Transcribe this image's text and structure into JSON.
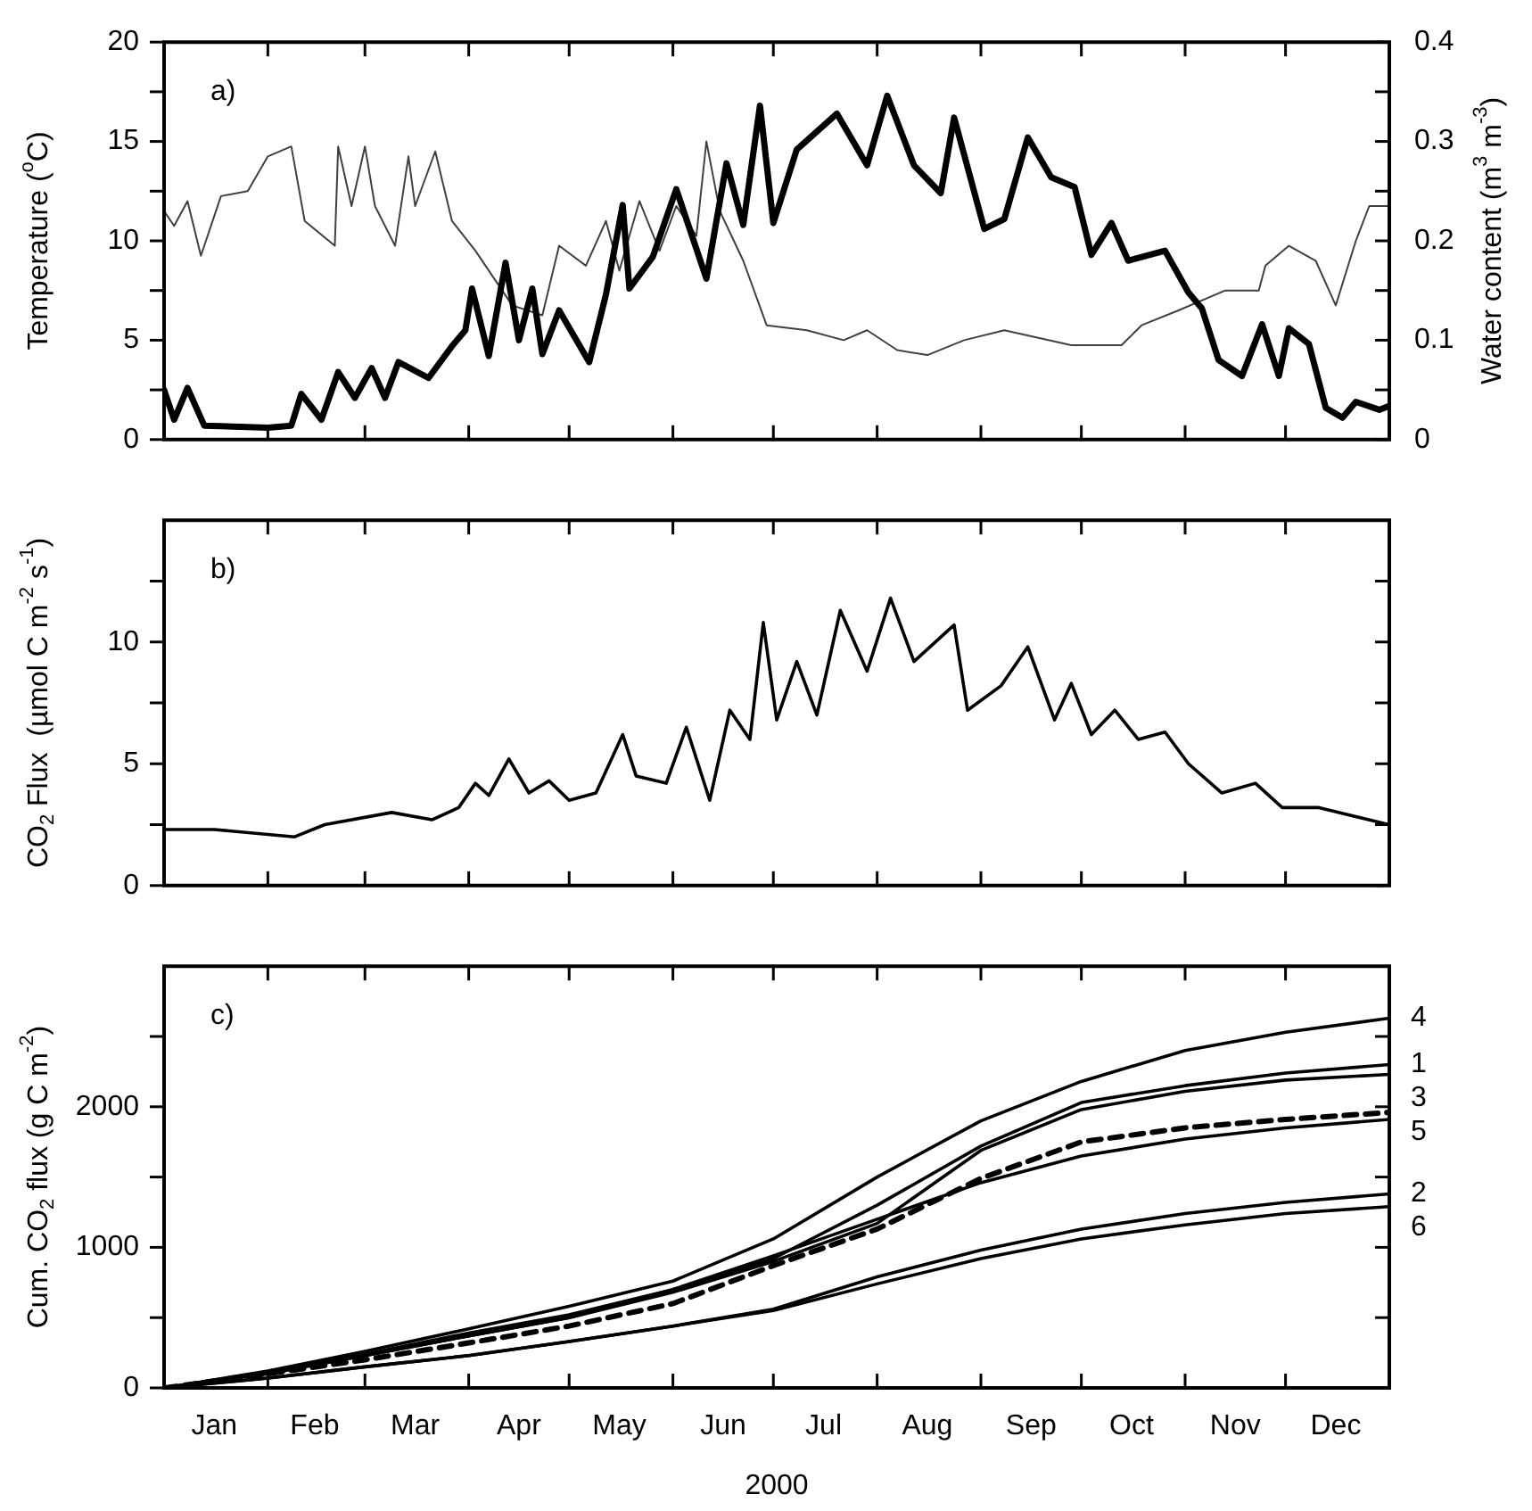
{
  "chart_data": [
    {
      "type": "line",
      "ylabel": "Temperature ($^{o}$C)",
      "y2label": "Water content (m$^{3}$ m$^{-3}$)",
      "annotations": [
        "a)"
      ],
      "xlim": [
        "2000-01-01",
        "2001-01-01"
      ],
      "xticks": [
        {
          "value": "2000-02-01",
          "label": null
        },
        {
          "value": "2000-03-01",
          "label": null
        },
        {
          "value": "2000-04-01",
          "label": null
        },
        {
          "value": "2000-05-01",
          "label": null
        },
        {
          "value": "2000-06-01",
          "label": null
        },
        {
          "value": "2000-07-01",
          "label": null
        },
        {
          "value": "2000-08-01",
          "label": null
        },
        {
          "value": "2000-09-01",
          "label": null
        },
        {
          "value": "2000-10-01",
          "label": null
        },
        {
          "value": "2000-11-01",
          "label": null
        },
        {
          "value": "2000-12-01",
          "label": null
        }
      ],
      "ylim": [
        0,
        20
      ],
      "yticks": [
        0,
        {
          "value": 2.5,
          "label": null
        },
        5,
        {
          "value": 7.5,
          "label": null
        },
        10,
        {
          "value": 12.5,
          "label": null
        },
        15,
        {
          "value": 17.5,
          "label": null
        },
        20
      ],
      "y2lim": [
        0,
        0.4
      ],
      "y2ticks": [
        0,
        {
          "value": 0.05,
          "label": null
        },
        0.1,
        {
          "value": 0.15,
          "label": null
        },
        0.2,
        {
          "value": 0.25,
          "label": null
        },
        0.3,
        {
          "value": 0.35,
          "label": null
        },
        0.4
      ],
      "tick_labels": "y",
      "grid": false,
      "legend": false,
      "marker": "none",
      "series": [
        {
          "color": "#000000",
          "x": [
            "2000-01-01",
            "2000-01-04",
            "2000-01-08",
            "2000-01-13",
            "2000-02-01",
            "2000-02-08",
            "2000-02-11",
            "2000-02-17",
            "2000-02-22",
            "2000-02-27",
            "2000-03-03",
            "2000-03-07",
            "2000-03-11",
            "2000-03-20",
            "2000-03-27",
            "2000-03-31",
            "2000-04-02",
            "2000-04-07",
            "2000-04-12",
            "2000-04-16",
            "2000-04-20",
            "2000-04-23",
            "2000-04-28",
            "2000-05-07",
            "2000-05-12",
            "2000-05-17",
            "2000-05-19",
            "2000-05-26",
            "2000-06-02",
            "2000-06-11",
            "2000-06-17",
            "2000-06-22",
            "2000-06-27",
            "2000-07-01",
            "2000-07-08",
            "2000-07-20",
            "2000-07-29",
            "2000-08-04",
            "2000-08-12",
            "2000-08-20",
            "2000-08-24",
            "2000-09-02",
            "2000-09-08",
            "2000-09-15",
            "2000-09-22",
            "2000-09-29",
            "2000-10-04",
            "2000-10-10",
            "2000-10-15",
            "2000-10-26",
            "2000-11-02",
            "2000-11-06",
            "2000-11-11",
            "2000-11-18",
            "2000-11-24",
            "2000-11-29",
            "2000-12-02",
            "2000-12-08",
            "2000-12-13",
            "2000-12-18",
            "2000-12-22",
            "2000-12-29",
            "2001-01-01"
          ],
          "values": [
            2.5,
            1.0,
            2.6,
            0.7,
            0.6,
            0.7,
            2.3,
            1.0,
            3.4,
            2.1,
            3.6,
            2.1,
            3.9,
            3.1,
            4.7,
            5.5,
            7.6,
            4.2,
            8.9,
            5.0,
            7.6,
            4.3,
            6.5,
            3.9,
            7.3,
            11.8,
            7.6,
            9.2,
            12.6,
            8.1,
            13.9,
            10.8,
            16.8,
            10.9,
            14.6,
            16.4,
            13.8,
            17.3,
            13.8,
            12.4,
            16.2,
            10.6,
            11.1,
            15.2,
            13.2,
            12.7,
            9.3,
            10.9,
            9.0,
            9.5,
            7.4,
            6.6,
            4.0,
            3.2,
            5.8,
            3.2,
            5.6,
            4.8,
            1.6,
            1.1,
            1.9,
            1.5,
            1.7
          ]
        },
        {
          "color": "#404040",
          "axis": "y2",
          "x": [
            "2000-01-01",
            "2000-01-04",
            "2000-01-08",
            "2000-01-12",
            "2000-01-18",
            "2000-01-26",
            "2000-02-01",
            "2000-02-08",
            "2000-02-12",
            "2000-02-21",
            "2000-02-22",
            "2000-02-26",
            "2000-03-01",
            "2000-03-04",
            "2000-03-10",
            "2000-03-14",
            "2000-03-16",
            "2000-03-22",
            "2000-03-27",
            "2000-04-03",
            "2000-04-14",
            "2000-04-23",
            "2000-04-28",
            "2000-05-06",
            "2000-05-12",
            "2000-05-16",
            "2000-05-22",
            "2000-05-28",
            "2000-06-02",
            "2000-06-08",
            "2000-06-11",
            "2000-06-15",
            "2000-06-22",
            "2000-06-29",
            "2000-07-11",
            "2000-07-22",
            "2000-07-29",
            "2000-08-07",
            "2000-08-16",
            "2000-08-27",
            "2000-09-08",
            "2000-09-28",
            "2000-10-13",
            "2000-10-19",
            "2000-10-30",
            "2000-11-13",
            "2000-11-23",
            "2000-11-25",
            "2000-12-02",
            "2000-12-10",
            "2000-12-16",
            "2000-12-22",
            "2000-12-26",
            "2001-01-01"
          ],
          "values": [
            0.23,
            0.215,
            0.24,
            0.185,
            0.245,
            0.25,
            0.285,
            0.295,
            0.22,
            0.195,
            0.295,
            0.235,
            0.295,
            0.235,
            0.195,
            0.285,
            0.235,
            0.29,
            0.22,
            0.19,
            0.135,
            0.125,
            0.195,
            0.175,
            0.22,
            0.17,
            0.24,
            0.19,
            0.235,
            0.205,
            0.3,
            0.23,
            0.18,
            0.115,
            0.11,
            0.1,
            0.11,
            0.09,
            0.085,
            0.1,
            0.11,
            0.095,
            0.095,
            0.115,
            0.13,
            0.15,
            0.15,
            0.175,
            0.195,
            0.18,
            0.135,
            0.2,
            0.235,
            0.235
          ]
        }
      ]
    },
    {
      "type": "line",
      "ylabel": "CO$_{2}$ Flux  (µmol C m$^{-2}$ s$^{-1}$)",
      "annotations": [
        "b)"
      ],
      "xlim": [
        "2000-01-01",
        "2001-01-01"
      ],
      "xticks": [
        {
          "value": "2000-02-01",
          "label": null
        },
        {
          "value": "2000-03-01",
          "label": null
        },
        {
          "value": "2000-04-01",
          "label": null
        },
        {
          "value": "2000-05-01",
          "label": null
        },
        {
          "value": "2000-06-01",
          "label": null
        },
        {
          "value": "2000-07-01",
          "label": null
        },
        {
          "value": "2000-08-01",
          "label": null
        },
        {
          "value": "2000-09-01",
          "label": null
        },
        {
          "value": "2000-10-01",
          "label": null
        },
        {
          "value": "2000-11-01",
          "label": null
        },
        {
          "value": "2000-12-01",
          "label": null
        }
      ],
      "ylim": [
        0,
        15
      ],
      "yticks": [
        0,
        {
          "value": 2.5,
          "label": null
        },
        5,
        {
          "value": 7.5,
          "label": null
        },
        10,
        {
          "value": 12.5,
          "label": null
        }
      ],
      "tick_labels": "y",
      "grid": false,
      "legend": false,
      "marker": "none",
      "series": [
        {
          "color": "#000000",
          "x": [
            "2000-01-01",
            "2000-01-16",
            "2000-02-09",
            "2000-02-18",
            "2000-03-09",
            "2000-03-21",
            "2000-03-29",
            "2000-04-03",
            "2000-04-07",
            "2000-04-13",
            "2000-04-19",
            "2000-04-25",
            "2000-05-01",
            "2000-05-09",
            "2000-05-17",
            "2000-05-21",
            "2000-05-30",
            "2000-06-05",
            "2000-06-12",
            "2000-06-18",
            "2000-06-24",
            "2000-06-28",
            "2000-07-02",
            "2000-07-08",
            "2000-07-14",
            "2000-07-21",
            "2000-07-29",
            "2000-08-05",
            "2000-08-12",
            "2000-08-24",
            "2000-08-28",
            "2000-09-07",
            "2000-09-15",
            "2000-09-23",
            "2000-09-28",
            "2000-10-04",
            "2000-10-11",
            "2000-10-18",
            "2000-10-26",
            "2000-11-02",
            "2000-11-12",
            "2000-11-22",
            "2000-11-30",
            "2000-12-11",
            "2001-01-01"
          ],
          "values": [
            2.3,
            2.3,
            2.0,
            2.5,
            3.0,
            2.7,
            3.2,
            4.2,
            3.7,
            5.2,
            3.8,
            4.3,
            3.5,
            3.8,
            6.2,
            4.5,
            4.2,
            6.5,
            3.5,
            7.2,
            6.0,
            10.8,
            6.8,
            9.2,
            7.0,
            11.3,
            8.8,
            11.8,
            9.2,
            10.7,
            7.2,
            8.2,
            9.8,
            6.8,
            8.3,
            6.2,
            7.2,
            6.0,
            6.3,
            5.0,
            3.8,
            4.2,
            3.2,
            3.2,
            2.5
          ]
        }
      ]
    },
    {
      "type": "line",
      "ylabel": "Cum. CO$_{2}$ flux (g C m$^{-2}$)",
      "xlabel": "2000",
      "annotations": [
        "c)"
      ],
      "xlim": [
        "2000-01-01",
        "2001-01-01"
      ],
      "xticks": [
        {
          "value": "2000-01-16",
          "label": "Jan"
        },
        {
          "value": "2000-02-01",
          "label": null
        },
        {
          "value": "2000-02-15",
          "label": "Feb"
        },
        {
          "value": "2000-03-01",
          "label": null
        },
        {
          "value": "2000-03-16",
          "label": "Mar"
        },
        {
          "value": "2000-04-01",
          "label": null
        },
        {
          "value": "2000-04-16",
          "label": "Apr"
        },
        {
          "value": "2000-05-01",
          "label": null
        },
        {
          "value": "2000-05-16",
          "label": "May"
        },
        {
          "value": "2000-06-01",
          "label": null
        },
        {
          "value": "2000-06-16",
          "label": "Jun"
        },
        {
          "value": "2000-07-01",
          "label": null
        },
        {
          "value": "2000-07-16",
          "label": "Jul"
        },
        {
          "value": "2000-08-01",
          "label": null
        },
        {
          "value": "2000-08-16",
          "label": "Aug"
        },
        {
          "value": "2000-09-01",
          "label": null
        },
        {
          "value": "2000-09-16",
          "label": "Sep"
        },
        {
          "value": "2000-10-01",
          "label": null
        },
        {
          "value": "2000-10-16",
          "label": "Oct"
        },
        {
          "value": "2000-11-01",
          "label": null
        },
        {
          "value": "2000-11-16",
          "label": "Nov"
        },
        {
          "value": "2000-12-01",
          "label": null
        },
        {
          "value": "2000-12-16",
          "label": "Dec"
        }
      ],
      "ylim": [
        0,
        3000
      ],
      "yticks": [
        0,
        {
          "value": 500,
          "label": null
        },
        1000,
        {
          "value": 1500,
          "label": null
        },
        2000,
        {
          "value": 2500,
          "label": null
        }
      ],
      "grid": false,
      "legend": "right",
      "marker": "none",
      "x": [
        "2000-01-01",
        "2000-02-01",
        "2000-03-01",
        "2000-04-01",
        "2000-05-01",
        "2000-06-01",
        "2000-07-01",
        "2000-08-01",
        "2000-09-01",
        "2000-10-01",
        "2000-11-01",
        "2000-12-01",
        "2001-01-01"
      ],
      "series": [
        {
          "name": "4",
          "color": "#000000",
          "values": [
            0,
            120,
            260,
            420,
            580,
            760,
            1060,
            1500,
            1900,
            2180,
            2400,
            2530,
            2630
          ]
        },
        {
          "name": "1",
          "color": "#000000",
          "values": [
            0,
            110,
            240,
            390,
            520,
            700,
            920,
            1300,
            1720,
            2030,
            2150,
            2240,
            2300
          ]
        },
        {
          "name": "3",
          "color": "#000000",
          "values": [
            0,
            100,
            230,
            370,
            500,
            680,
            900,
            1170,
            1690,
            1980,
            2110,
            2190,
            2230
          ]
        },
        {
          "color": "#000000",
          "line_style": "dashed",
          "values": [
            0,
            100,
            200,
            320,
            440,
            600,
            870,
            1130,
            1490,
            1750,
            1850,
            1910,
            1960
          ]
        },
        {
          "name": "5",
          "color": "#000000",
          "values": [
            0,
            110,
            230,
            370,
            500,
            700,
            940,
            1200,
            1460,
            1650,
            1770,
            1850,
            1910
          ]
        },
        {
          "name": "2",
          "color": "#000000",
          "values": [
            0,
            70,
            150,
            230,
            330,
            440,
            560,
            790,
            980,
            1130,
            1240,
            1320,
            1380
          ]
        },
        {
          "name": "6",
          "color": "#000000",
          "values": [
            0,
            70,
            150,
            230,
            330,
            440,
            550,
            740,
            920,
            1060,
            1160,
            1240,
            1290
          ]
        }
      ]
    }
  ]
}
